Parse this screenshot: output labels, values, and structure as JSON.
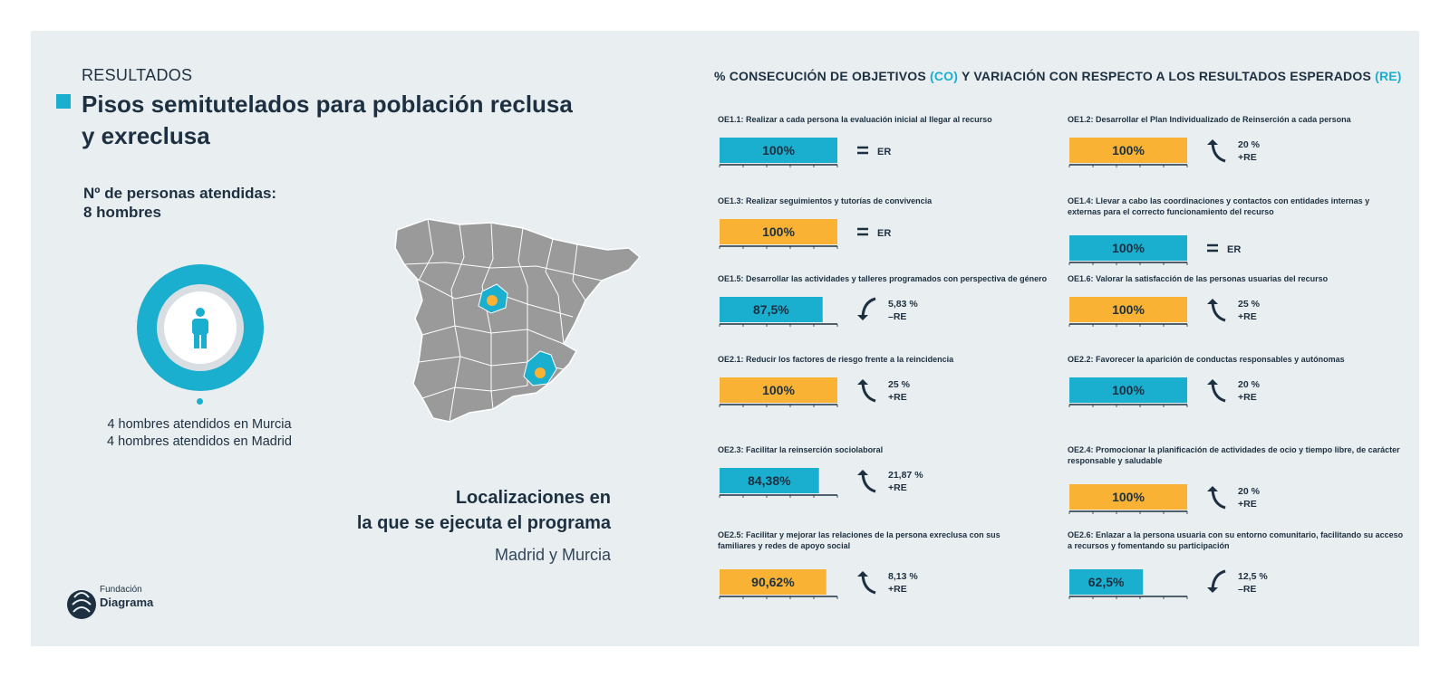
{
  "header": {
    "section_label": "RESULTADOS",
    "title": "Pisos semitutelados para población reclusa y exreclusa"
  },
  "people": {
    "label": "Nº de personas atendidas:",
    "count": "8 hombres",
    "detail_1": "4 hombres atendidos en Murcia",
    "detail_2": "4 hombres atendidos en Madrid"
  },
  "locations": {
    "title_line_1": "Localizaciones en",
    "title_line_2": "la que se ejecuta el programa",
    "subtitle": "Madrid y Murcia"
  },
  "logo": {
    "line_1": "Fundación",
    "line_2": "Diagrama"
  },
  "chart_heading": {
    "part_1": "% CONSECUCIÓN DE OBJETIVOS ",
    "accent_1": "(CO)",
    "part_2": " Y VARIACIÓN CON RESPECTO A LOS RESULTADOS ESPERADOS ",
    "accent_2": "(RE)"
  },
  "colors": {
    "teal": "#1aaecf",
    "orange": "#f9b233",
    "dark": "#1d3041",
    "map_gray": "#9a9a9a",
    "background": "#e9eef0"
  },
  "chart_data": {
    "type": "bar",
    "orientation": "horizontal",
    "xlim": [
      0,
      100
    ],
    "items": [
      {
        "title": [
          "OE1.1: Realizar a cada persona la evaluación inicial al llegar al recurso"
        ],
        "value": 100,
        "value_label": "100%",
        "color": "#1aaecf",
        "variation": "equal",
        "variation_label": "ER"
      },
      {
        "title": [
          "OE1.2: Desarrollar el Plan Individualizado de Reinserción a cada persona"
        ],
        "value": 100,
        "value_label": "100%",
        "color": "#f9b233",
        "variation": "up",
        "variation_pct": "20 %",
        "variation_label": "+RE"
      },
      {
        "title": [
          "OE1.3: Realizar seguimientos y tutorías de convivencia"
        ],
        "value": 100,
        "value_label": "100%",
        "color": "#f9b233",
        "variation": "equal",
        "variation_label": "ER"
      },
      {
        "title": [
          "OE1.4: Llevar a cabo las coordinaciones y contactos con entidades internas y",
          "externas para el correcto funcionamiento del recurso"
        ],
        "value": 100,
        "value_label": "100%",
        "color": "#1aaecf",
        "variation": "equal",
        "variation_label": "ER"
      },
      {
        "title": [
          "OE1.5: Desarrollar las actividades y talleres programados con perspectiva de género"
        ],
        "value": 87.5,
        "value_label": "87,5%",
        "color": "#1aaecf",
        "variation": "down",
        "variation_pct": "5,83 %",
        "variation_label": "–RE"
      },
      {
        "title": [
          "OE1.6: Valorar la satisfacción de las personas usuarias del recurso"
        ],
        "value": 100,
        "value_label": "100%",
        "color": "#f9b233",
        "variation": "up",
        "variation_pct": "25 %",
        "variation_label": "+RE"
      },
      {
        "title": [
          "OE2.1: Reducir los factores de riesgo frente a la reincidencia"
        ],
        "value": 100,
        "value_label": "100%",
        "color": "#f9b233",
        "variation": "up",
        "variation_pct": "25 %",
        "variation_label": "+RE"
      },
      {
        "title": [
          "OE2.2: Favorecer la aparición de conductas responsables y autónomas"
        ],
        "value": 100,
        "value_label": "100%",
        "color": "#1aaecf",
        "variation": "up",
        "variation_pct": "20 %",
        "variation_label": "+RE"
      },
      {
        "title": [
          "OE2.3: Facilitar la reinserción sociolaboral"
        ],
        "value": 84.38,
        "value_label": "84,38%",
        "color": "#1aaecf",
        "variation": "up",
        "variation_pct": "21,87 %",
        "variation_label": "+RE"
      },
      {
        "title": [
          "OE2.4: Promocionar la planificación de actividades de ocio y tiempo libre, de carácter",
          "responsable y saludable"
        ],
        "value": 100,
        "value_label": "100%",
        "color": "#f9b233",
        "variation": "up",
        "variation_pct": "20 %",
        "variation_label": "+RE"
      },
      {
        "title": [
          "OE2.5: Facilitar y mejorar las relaciones de la persona exreclusa con sus",
          "familiares y redes de apoyo social"
        ],
        "value": 90.62,
        "value_label": "90,62%",
        "color": "#f9b233",
        "variation": "up",
        "variation_pct": "8,13 %",
        "variation_label": "+RE"
      },
      {
        "title": [
          "OE2.6: Enlazar a la persona usuaria con su entorno comunitario, facilitando su acceso",
          "a recursos y fomentando su participación"
        ],
        "value": 62.5,
        "value_label": "62,5%",
        "color": "#1aaecf",
        "variation": "down",
        "variation_pct": "12,5 %",
        "variation_label": "–RE"
      }
    ]
  }
}
